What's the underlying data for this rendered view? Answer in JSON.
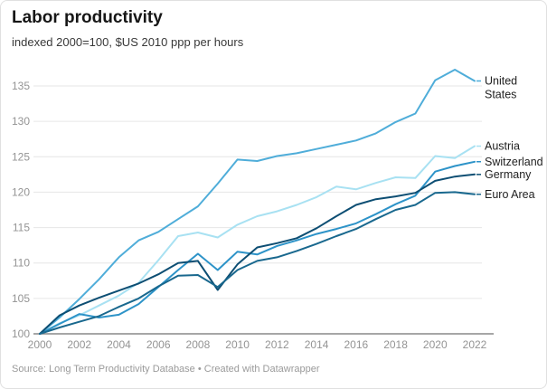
{
  "header": {
    "title": "Labor productivity",
    "subtitle": "indexed 2000=100, $US 2010 ppp per hours"
  },
  "footer": {
    "source": "Source: Long Term Productivity Database • Created with Datawrapper"
  },
  "colors": {
    "grid": "#e6e6e6",
    "axis_line": "#8a8a8a",
    "tick_label": "#949494",
    "series_label": "#1f1f1f"
  },
  "chart_data": {
    "type": "line",
    "title": "Labor productivity",
    "subtitle": "indexed 2000=100, $US 2010 ppp per hours",
    "xlabel": "",
    "ylabel": "",
    "x": [
      2000,
      2001,
      2002,
      2003,
      2004,
      2005,
      2006,
      2007,
      2008,
      2009,
      2010,
      2011,
      2012,
      2013,
      2014,
      2015,
      2016,
      2017,
      2018,
      2019,
      2020,
      2021,
      2022
    ],
    "x_tick_labels": [
      "2000",
      "2002",
      "2004",
      "2006",
      "2008",
      "2010",
      "2012",
      "2014",
      "2016",
      "2018",
      "2020",
      "2022"
    ],
    "y_ticks": [
      100,
      105,
      110,
      115,
      120,
      125,
      130,
      135
    ],
    "ylim": [
      100,
      138.5
    ],
    "xlim": [
      2000,
      2022
    ],
    "grid": "horizontal",
    "legend_position": "right-end-labels",
    "series": [
      {
        "name": "United States",
        "label": "United\nStates",
        "color": "#4fadd9",
        "values": [
          100,
          102.3,
          104.9,
          107.7,
          110.8,
          113.2,
          114.4,
          116.2,
          118.0,
          121.2,
          124.6,
          124.4,
          125.1,
          125.5,
          126.1,
          126.7,
          127.3,
          128.3,
          129.9,
          131.1,
          135.8,
          137.3,
          135.7
        ]
      },
      {
        "name": "Austria",
        "label": "Austria",
        "color": "#a8e1f2",
        "values": [
          100,
          101.5,
          102.6,
          104.0,
          105.4,
          107.2,
          110.4,
          113.8,
          114.3,
          113.6,
          115.4,
          116.6,
          117.3,
          118.2,
          119.3,
          120.8,
          120.4,
          121.3,
          122.1,
          122.0,
          125.1,
          124.8,
          126.5
        ]
      },
      {
        "name": "Switzerland",
        "label": "Switzerland",
        "color": "#2d93c8",
        "values": [
          100,
          101.4,
          102.8,
          102.3,
          102.7,
          104.2,
          106.6,
          109.0,
          111.3,
          109.0,
          111.6,
          111.2,
          112.4,
          113.2,
          114.1,
          114.8,
          115.6,
          116.9,
          118.3,
          119.5,
          122.9,
          123.7,
          124.3
        ]
      },
      {
        "name": "Germany",
        "label": "Germany",
        "color": "#0d4e73",
        "values": [
          100,
          102.6,
          104.0,
          105.1,
          106.1,
          107.1,
          108.4,
          110.0,
          110.3,
          106.2,
          109.8,
          112.2,
          112.8,
          113.5,
          114.9,
          116.6,
          118.2,
          119.0,
          119.4,
          119.9,
          121.6,
          122.2,
          122.5
        ]
      },
      {
        "name": "Euro Area",
        "label": "Euro Area",
        "color": "#19688e",
        "values": [
          100,
          100.9,
          101.7,
          102.5,
          103.8,
          105.0,
          106.7,
          108.2,
          108.3,
          106.6,
          109.0,
          110.3,
          110.8,
          111.7,
          112.7,
          113.8,
          114.8,
          116.2,
          117.5,
          118.2,
          119.9,
          120.0,
          119.7
        ]
      }
    ]
  }
}
